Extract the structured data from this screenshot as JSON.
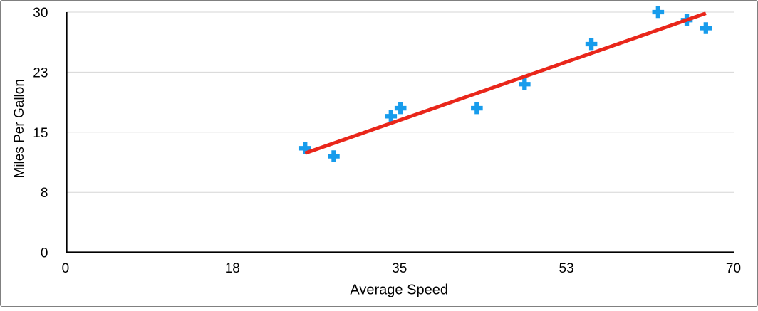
{
  "chart_data": {
    "type": "scatter",
    "title": "",
    "xlabel": "Average Speed",
    "ylabel": "Miles Per Gallon",
    "xlim": [
      0,
      70
    ],
    "ylim": [
      0,
      30
    ],
    "x_tick_values": [
      0,
      17.5,
      35,
      52.5,
      70
    ],
    "x_tick_labels": [
      "0",
      "18",
      "35",
      "53",
      "70"
    ],
    "y_tick_values": [
      0,
      7.5,
      15,
      22.5,
      30
    ],
    "y_tick_labels": [
      "0",
      "8",
      "15",
      "23",
      "30"
    ],
    "grid": "horizontal-only",
    "legend_position": "none",
    "series": [
      {
        "name": "Miles Per Gallon",
        "marker": "plus",
        "marker_color": "#179CEC",
        "marker_size": 16.6,
        "points": [
          [
            25,
            13
          ],
          [
            28,
            12
          ],
          [
            34,
            17
          ],
          [
            35,
            18
          ],
          [
            43,
            18
          ],
          [
            48,
            21
          ],
          [
            55,
            26
          ],
          [
            62,
            30
          ],
          [
            65,
            29
          ],
          [
            67,
            28
          ]
        ]
      }
    ],
    "trendline": {
      "kind": "linear",
      "slope": 0.416,
      "intercept": 1.98,
      "x_range": [
        25,
        67
      ],
      "color": "#E9261A",
      "stroke_width": 5
    }
  },
  "style": {
    "frame_border_color": "#808080",
    "axis_color": "#000000",
    "gridline_color": "#d6d6d6",
    "text_color": "#000000",
    "background": "#ffffff"
  }
}
